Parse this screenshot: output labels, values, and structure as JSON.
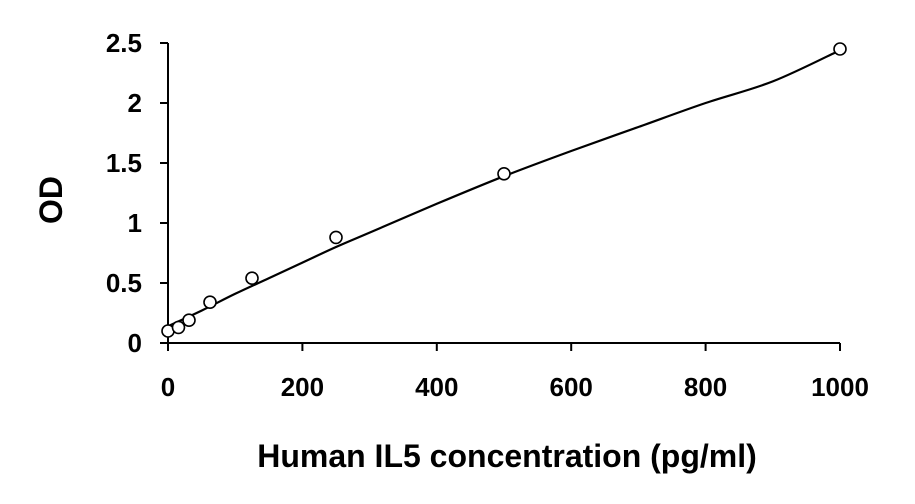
{
  "chart_data": {
    "type": "scatter",
    "title": "",
    "xlabel": "Human IL5 concentration (pg/ml)",
    "ylabel": "OD",
    "xlim": [
      0,
      1000
    ],
    "ylim": [
      0,
      2.5
    ],
    "x_ticks": [
      "0",
      "200",
      "400",
      "600",
      "800",
      "1000"
    ],
    "y_ticks": [
      "0",
      "0.5",
      "1",
      "1.5",
      "2",
      "2.5"
    ],
    "grid": false,
    "legend": "none",
    "series": [
      {
        "points": [
          {
            "x": 0,
            "y": 0.1
          },
          {
            "x": 15.6,
            "y": 0.13
          },
          {
            "x": 31.25,
            "y": 0.19
          },
          {
            "x": 62.5,
            "y": 0.34
          },
          {
            "x": 125,
            "y": 0.54
          },
          {
            "x": 250,
            "y": 0.88
          },
          {
            "x": 500,
            "y": 1.41
          },
          {
            "x": 1000,
            "y": 2.45
          }
        ],
        "marker": "open-circle",
        "color": "#000000"
      }
    ],
    "fit_curve": {
      "type": "curve",
      "color": "#000000",
      "points": [
        {
          "x": 0,
          "y": 0.14
        },
        {
          "x": 50,
          "y": 0.27
        },
        {
          "x": 100,
          "y": 0.41
        },
        {
          "x": 150,
          "y": 0.54
        },
        {
          "x": 200,
          "y": 0.67
        },
        {
          "x": 250,
          "y": 0.8
        },
        {
          "x": 300,
          "y": 0.92
        },
        {
          "x": 400,
          "y": 1.16
        },
        {
          "x": 500,
          "y": 1.39
        },
        {
          "x": 600,
          "y": 1.6
        },
        {
          "x": 700,
          "y": 1.8
        },
        {
          "x": 800,
          "y": 2.0
        },
        {
          "x": 900,
          "y": 2.18
        },
        {
          "x": 1000,
          "y": 2.44
        }
      ]
    }
  }
}
